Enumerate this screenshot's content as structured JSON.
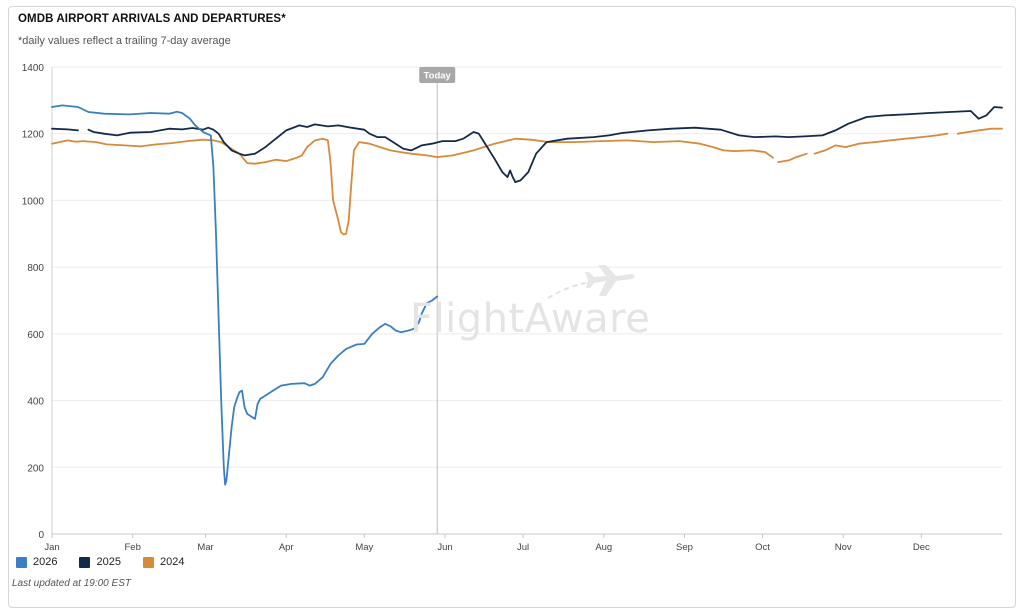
{
  "header": {
    "title": "OMDB AIRPORT ARRIVALS AND DEPARTURES*",
    "subtitle": "*daily values reflect a trailing 7-day average"
  },
  "watermark": {
    "text": "FlightAware",
    "icon": "airplane-icon"
  },
  "footer": {
    "updated": "Last updated at 19:00 EST"
  },
  "chart_data": {
    "type": "line",
    "title": "OMDB AIRPORT ARRIVALS AND DEPARTURES*",
    "xlabel": "",
    "ylabel": "",
    "ylim": [
      0,
      1400
    ],
    "xlim": [
      0,
      365
    ],
    "grid": true,
    "legend": "bottom-left",
    "y_ticks": [
      0,
      200,
      400,
      600,
      800,
      1000,
      1200,
      1400
    ],
    "month_ticks": [
      {
        "label": "Jan",
        "day": 0
      },
      {
        "label": "Feb",
        "day": 31
      },
      {
        "label": "Mar",
        "day": 59
      },
      {
        "label": "Apr",
        "day": 90
      },
      {
        "label": "May",
        "day": 120
      },
      {
        "label": "Jun",
        "day": 151
      },
      {
        "label": "Jul",
        "day": 181
      },
      {
        "label": "Aug",
        "day": 212
      },
      {
        "label": "Sep",
        "day": 243
      },
      {
        "label": "Oct",
        "day": 273
      },
      {
        "label": "Nov",
        "day": 304
      },
      {
        "label": "Dec",
        "day": 334
      }
    ],
    "today": {
      "label": "Today",
      "day": 148
    },
    "series": [
      {
        "name": "2026",
        "color": "#3a7fc1",
        "points": [
          [
            0,
            1280
          ],
          [
            4,
            1285
          ],
          [
            10,
            1280
          ],
          [
            14,
            1265
          ],
          [
            20,
            1260
          ],
          [
            30,
            1258
          ],
          [
            38,
            1262
          ],
          [
            45,
            1260
          ],
          [
            48,
            1266
          ],
          [
            50,
            1262
          ],
          [
            53,
            1245
          ],
          [
            55,
            1225
          ],
          [
            58,
            1205
          ],
          [
            61,
            1195
          ],
          [
            62,
            1100
          ],
          [
            63,
            900
          ],
          [
            64,
            650
          ],
          [
            65,
            400
          ],
          [
            66,
            200
          ],
          [
            66.5,
            148
          ],
          [
            67,
            160
          ],
          [
            68,
            240
          ],
          [
            69,
            320
          ],
          [
            70,
            380
          ],
          [
            71,
            405
          ],
          [
            72,
            425
          ],
          [
            73,
            430
          ],
          [
            74,
            380
          ],
          [
            75,
            360
          ],
          [
            77,
            350
          ],
          [
            78,
            345
          ],
          [
            79,
            390
          ],
          [
            80,
            405
          ],
          [
            83,
            420
          ],
          [
            86,
            435
          ],
          [
            88,
            445
          ],
          [
            92,
            450
          ],
          [
            97,
            452
          ],
          [
            99,
            445
          ],
          [
            101,
            450
          ],
          [
            104,
            470
          ],
          [
            107,
            510
          ],
          [
            110,
            535
          ],
          [
            113,
            555
          ],
          [
            117,
            568
          ],
          [
            120,
            570
          ],
          [
            123,
            600
          ],
          [
            126,
            620
          ],
          [
            128,
            630
          ],
          [
            130,
            623
          ],
          [
            132,
            610
          ],
          [
            134,
            605
          ],
          [
            137,
            610
          ],
          [
            139,
            615
          ],
          [
            141,
            635
          ],
          [
            142,
            660
          ],
          [
            144,
            692
          ],
          [
            146,
            700
          ],
          [
            148,
            712
          ]
        ]
      },
      {
        "name": "2025",
        "color": "#142a4a",
        "dashes": [
          [
            0,
            10
          ],
          [
            12,
            365
          ]
        ],
        "points": [
          [
            0,
            1215
          ],
          [
            6,
            1213
          ],
          [
            10,
            1210
          ],
          [
            14,
            1212
          ],
          [
            16,
            1205
          ],
          [
            20,
            1200
          ],
          [
            25,
            1195
          ],
          [
            30,
            1203
          ],
          [
            38,
            1205
          ],
          [
            45,
            1215
          ],
          [
            50,
            1213
          ],
          [
            54,
            1217
          ],
          [
            58,
            1212
          ],
          [
            60,
            1218
          ],
          [
            62,
            1212
          ],
          [
            64,
            1200
          ],
          [
            66,
            1175
          ],
          [
            69,
            1150
          ],
          [
            72,
            1140
          ],
          [
            74,
            1135
          ],
          [
            78,
            1140
          ],
          [
            82,
            1160
          ],
          [
            86,
            1185
          ],
          [
            90,
            1210
          ],
          [
            95,
            1225
          ],
          [
            98,
            1220
          ],
          [
            101,
            1228
          ],
          [
            106,
            1222
          ],
          [
            110,
            1225
          ],
          [
            115,
            1218
          ],
          [
            120,
            1212
          ],
          [
            122,
            1200
          ],
          [
            125,
            1190
          ],
          [
            128,
            1190
          ],
          [
            132,
            1170
          ],
          [
            135,
            1155
          ],
          [
            138,
            1150
          ],
          [
            142,
            1165
          ],
          [
            146,
            1170
          ],
          [
            150,
            1178
          ],
          [
            155,
            1178
          ],
          [
            158,
            1185
          ],
          [
            160,
            1195
          ],
          [
            162,
            1205
          ],
          [
            164,
            1200
          ],
          [
            166,
            1175
          ],
          [
            170,
            1125
          ],
          [
            173,
            1085
          ],
          [
            175,
            1070
          ],
          [
            176,
            1090
          ],
          [
            177,
            1070
          ],
          [
            178,
            1055
          ],
          [
            180,
            1060
          ],
          [
            183,
            1085
          ],
          [
            186,
            1140
          ],
          [
            190,
            1175
          ],
          [
            198,
            1185
          ],
          [
            208,
            1190
          ],
          [
            214,
            1195
          ],
          [
            219,
            1202
          ],
          [
            229,
            1210
          ],
          [
            238,
            1215
          ],
          [
            247,
            1218
          ],
          [
            257,
            1212
          ],
          [
            264,
            1195
          ],
          [
            270,
            1190
          ],
          [
            278,
            1192
          ],
          [
            283,
            1190
          ],
          [
            289,
            1192
          ],
          [
            296,
            1195
          ],
          [
            301,
            1210
          ],
          [
            306,
            1230
          ],
          [
            313,
            1250
          ],
          [
            320,
            1255
          ],
          [
            328,
            1258
          ],
          [
            337,
            1262
          ],
          [
            345,
            1265
          ],
          [
            353,
            1268
          ],
          [
            356,
            1245
          ],
          [
            359,
            1255
          ],
          [
            362,
            1280
          ],
          [
            365,
            1278
          ]
        ]
      },
      {
        "name": "2024",
        "color": "#d68a3a",
        "dashes": [
          [
            0,
            277
          ],
          [
            279,
            292
          ],
          [
            293,
            346
          ],
          [
            348,
            365
          ]
        ],
        "points": [
          [
            0,
            1170
          ],
          [
            6,
            1180
          ],
          [
            9,
            1176
          ],
          [
            12,
            1178
          ],
          [
            17,
            1175
          ],
          [
            21,
            1168
          ],
          [
            28,
            1165
          ],
          [
            34,
            1162
          ],
          [
            40,
            1168
          ],
          [
            46,
            1172
          ],
          [
            52,
            1178
          ],
          [
            58,
            1182
          ],
          [
            62,
            1180
          ],
          [
            65,
            1175
          ],
          [
            68,
            1160
          ],
          [
            72,
            1140
          ],
          [
            75,
            1112
          ],
          [
            78,
            1110
          ],
          [
            82,
            1115
          ],
          [
            86,
            1122
          ],
          [
            90,
            1118
          ],
          [
            94,
            1128
          ],
          [
            96,
            1135
          ],
          [
            98,
            1160
          ],
          [
            101,
            1180
          ],
          [
            104,
            1185
          ],
          [
            106,
            1180
          ],
          [
            107,
            1115
          ],
          [
            108,
            1000
          ],
          [
            110,
            940
          ],
          [
            111,
            905
          ],
          [
            112,
            898
          ],
          [
            113,
            900
          ],
          [
            114,
            940
          ],
          [
            115,
            1050
          ],
          [
            116,
            1150
          ],
          [
            118,
            1175
          ],
          [
            122,
            1170
          ],
          [
            126,
            1160
          ],
          [
            130,
            1150
          ],
          [
            134,
            1145
          ],
          [
            138,
            1140
          ],
          [
            144,
            1135
          ],
          [
            148,
            1130
          ],
          [
            154,
            1135
          ],
          [
            162,
            1150
          ],
          [
            170,
            1170
          ],
          [
            178,
            1185
          ],
          [
            184,
            1182
          ],
          [
            191,
            1175
          ],
          [
            201,
            1175
          ],
          [
            211,
            1178
          ],
          [
            221,
            1180
          ],
          [
            231,
            1175
          ],
          [
            241,
            1178
          ],
          [
            249,
            1170
          ],
          [
            254,
            1160
          ],
          [
            258,
            1150
          ],
          [
            262,
            1148
          ],
          [
            269,
            1150
          ],
          [
            274,
            1145
          ],
          [
            277,
            1128
          ],
          [
            279,
            1115
          ],
          [
            283,
            1120
          ],
          [
            286,
            1130
          ],
          [
            290,
            1140
          ],
          [
            293,
            1140
          ],
          [
            297,
            1150
          ],
          [
            301,
            1165
          ],
          [
            305,
            1160
          ],
          [
            310,
            1170
          ],
          [
            316,
            1175
          ],
          [
            322,
            1180
          ],
          [
            328,
            1185
          ],
          [
            334,
            1190
          ],
          [
            340,
            1195
          ],
          [
            344,
            1200
          ],
          [
            348,
            1200
          ],
          [
            352,
            1205
          ],
          [
            356,
            1210
          ],
          [
            361,
            1215
          ],
          [
            365,
            1215
          ]
        ]
      }
    ]
  }
}
